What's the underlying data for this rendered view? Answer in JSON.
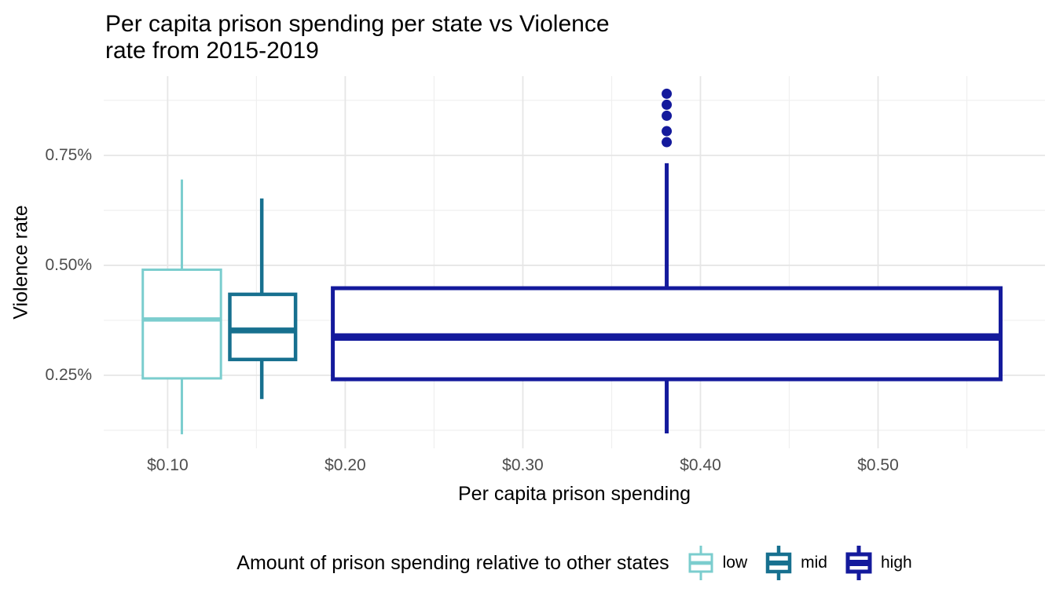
{
  "chart_data": {
    "type": "boxplot",
    "title": "Per capita prison spending per state vs Violence\nrate from 2015-2019",
    "xlabel": "Per capita prison spending",
    "ylabel": "Violence rate",
    "grid": true,
    "legend": {
      "title": "Amount of prison spending relative to other states",
      "position": "bottom"
    },
    "x_axis": {
      "unit": "dollars",
      "domain": [
        0.064,
        0.594
      ],
      "major_ticks": [
        0.1,
        0.2,
        0.3,
        0.4,
        0.5
      ],
      "tick_labels": [
        "$0.10",
        "$0.20",
        "$0.30",
        "$0.40",
        "$0.50"
      ],
      "minor_ticks": [
        0.15,
        0.25,
        0.35,
        0.45,
        0.55
      ]
    },
    "y_axis": {
      "unit": "percent",
      "domain": [
        0.084,
        0.93
      ],
      "major_ticks": [
        0.25,
        0.5,
        0.75
      ],
      "tick_labels": [
        "0.25%",
        "0.50%",
        "0.75%"
      ],
      "minor_ticks": [
        0.125,
        0.375,
        0.625,
        0.875
      ]
    },
    "series": [
      {
        "name": "low",
        "color": "#7bcdce",
        "x_center": 0.108,
        "box_x_min": 0.086,
        "box_x_max": 0.13,
        "whisker_min": 0.116,
        "q1": 0.243,
        "median": 0.377,
        "q3": 0.49,
        "whisker_max": 0.695,
        "outliers": [],
        "box_stroke": 3,
        "median_stroke": 5.5
      },
      {
        "name": "mid",
        "color": "#17708f",
        "x_center": 0.153,
        "box_x_min": 0.135,
        "box_x_max": 0.172,
        "whisker_min": 0.196,
        "q1": 0.286,
        "median": 0.352,
        "q3": 0.434,
        "whisker_max": 0.652,
        "outliers": [],
        "box_stroke": 4.5,
        "median_stroke": 7.5
      },
      {
        "name": "high",
        "color": "#141a9c",
        "x_center": 0.381,
        "box_x_min": 0.193,
        "box_x_max": 0.569,
        "whisker_min": 0.118,
        "q1": 0.241,
        "median": 0.337,
        "q3": 0.448,
        "whisker_max": 0.732,
        "outliers": [
          0.78,
          0.805,
          0.84,
          0.865,
          0.89
        ],
        "box_stroke": 5,
        "median_stroke": 9.5
      }
    ]
  },
  "colors": {
    "background": "#ffffff",
    "grid_major": "#e6e6e6",
    "grid_minor": "#efefef",
    "tick_label": "#4d4d4d",
    "text": "#000000"
  }
}
